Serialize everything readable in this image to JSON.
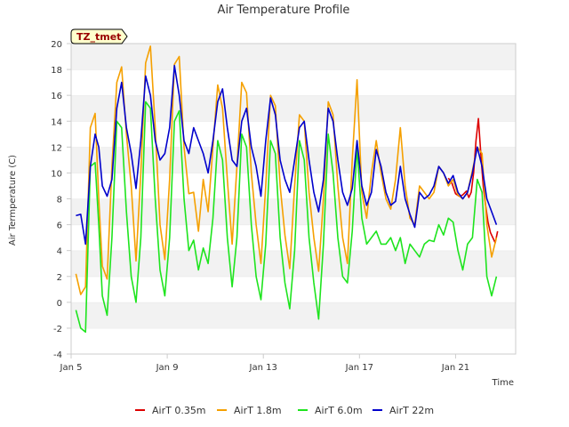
{
  "chart_data": {
    "type": "line",
    "title": "Air Temperature Profile",
    "xlabel": "Time",
    "ylabel": "Air Termperature (C)",
    "badge": "TZ_tmet",
    "xlim": [
      5,
      23.5
    ],
    "ylim": [
      -4,
      20
    ],
    "x_ticks": [
      {
        "value": 5,
        "label": "Jan 5"
      },
      {
        "value": 9,
        "label": "Jan 9"
      },
      {
        "value": 13,
        "label": "Jan 13"
      },
      {
        "value": 17,
        "label": "Jan 17"
      },
      {
        "value": 21,
        "label": "Jan 21"
      }
    ],
    "y_ticks": [
      -4,
      -2,
      0,
      2,
      4,
      6,
      8,
      10,
      12,
      14,
      16,
      18,
      20
    ],
    "grid": "horizontal bands",
    "legend_position": "bottom",
    "series": [
      {
        "name": "AirT 0.35m",
        "color": "#dd0000",
        "x": [
          20.7,
          20.85,
          21.0,
          21.15,
          21.3,
          21.45,
          21.55,
          21.65,
          21.75,
          21.85,
          21.95,
          22.05,
          22.15,
          22.25,
          22.35,
          22.45,
          22.55,
          22.65,
          22.75
        ],
        "y": [
          9.6,
          9.2,
          8.4,
          8.2,
          8.3,
          8.6,
          8.1,
          8.5,
          10.0,
          12.5,
          14.2,
          11.5,
          9.0,
          7.5,
          6.2,
          5.4,
          5.0,
          4.6,
          5.5
        ]
      },
      {
        "name": "AirT 1.8m",
        "color": "#f5a000",
        "x": [
          5.2,
          5.4,
          5.6,
          5.8,
          6.0,
          6.15,
          6.3,
          6.5,
          6.7,
          6.9,
          7.1,
          7.3,
          7.5,
          7.7,
          7.9,
          8.1,
          8.3,
          8.5,
          8.7,
          8.9,
          9.1,
          9.3,
          9.5,
          9.7,
          9.9,
          10.1,
          10.3,
          10.5,
          10.7,
          10.9,
          11.1,
          11.3,
          11.5,
          11.7,
          11.9,
          12.1,
          12.3,
          12.5,
          12.7,
          12.9,
          13.1,
          13.3,
          13.5,
          13.7,
          13.9,
          14.1,
          14.3,
          14.5,
          14.7,
          14.9,
          15.1,
          15.3,
          15.5,
          15.7,
          15.9,
          16.1,
          16.3,
          16.5,
          16.7,
          16.9,
          17.1,
          17.3,
          17.5,
          17.7,
          17.9,
          18.1,
          18.3,
          18.5,
          18.7,
          18.9,
          19.1,
          19.3,
          19.5,
          19.7,
          19.9,
          20.1,
          20.3,
          20.5,
          20.7,
          20.9,
          21.1,
          21.3,
          21.5,
          21.7,
          21.9,
          22.1,
          22.3,
          22.5,
          22.7
        ],
        "y": [
          2.2,
          0.6,
          1.2,
          13.5,
          14.6,
          8.0,
          2.8,
          1.8,
          10.5,
          17.0,
          18.2,
          13.0,
          9.0,
          3.2,
          10.0,
          18.5,
          19.8,
          13.5,
          6.0,
          3.3,
          9.5,
          18.4,
          19.0,
          12.0,
          8.4,
          8.5,
          5.5,
          9.5,
          7.0,
          12.0,
          16.8,
          15.0,
          9.5,
          4.5,
          10.5,
          17.0,
          16.2,
          10.0,
          6.0,
          3.0,
          9.0,
          16.0,
          15.2,
          9.0,
          5.2,
          2.6,
          9.0,
          14.5,
          14.0,
          8.5,
          5.0,
          2.4,
          8.0,
          15.5,
          14.5,
          9.0,
          5.0,
          3.0,
          11.0,
          17.2,
          8.5,
          6.5,
          10.0,
          12.5,
          10.0,
          8.0,
          7.2,
          9.5,
          13.5,
          9.0,
          6.5,
          6.0,
          9.0,
          8.5,
          8.0,
          8.5,
          10.5,
          10.0,
          9.0,
          9.5,
          8.3,
          8.0,
          8.5,
          10.2,
          12.0,
          11.5,
          6.0,
          3.5,
          5.0
        ]
      },
      {
        "name": "AirT 6.0m",
        "color": "#1ee41e",
        "x": [
          5.2,
          5.4,
          5.6,
          5.8,
          6.0,
          6.15,
          6.3,
          6.5,
          6.7,
          6.9,
          7.1,
          7.3,
          7.5,
          7.7,
          7.9,
          8.1,
          8.3,
          8.5,
          8.7,
          8.9,
          9.1,
          9.3,
          9.5,
          9.7,
          9.9,
          10.1,
          10.3,
          10.5,
          10.7,
          10.9,
          11.1,
          11.3,
          11.5,
          11.7,
          11.9,
          12.1,
          12.3,
          12.5,
          12.7,
          12.9,
          13.1,
          13.3,
          13.5,
          13.7,
          13.9,
          14.1,
          14.3,
          14.5,
          14.7,
          14.9,
          15.1,
          15.3,
          15.5,
          15.7,
          15.9,
          16.1,
          16.3,
          16.5,
          16.7,
          16.9,
          17.1,
          17.3,
          17.5,
          17.7,
          17.9,
          18.1,
          18.3,
          18.5,
          18.7,
          18.9,
          19.1,
          19.3,
          19.5,
          19.7,
          19.9,
          20.1,
          20.3,
          20.5,
          20.7,
          20.9,
          21.1,
          21.3,
          21.5,
          21.7,
          21.9,
          22.1,
          22.3,
          22.5,
          22.7
        ],
        "y": [
          -0.6,
          -2.0,
          -2.3,
          10.5,
          10.8,
          6.0,
          0.5,
          -1.0,
          5.0,
          14.0,
          13.5,
          7.0,
          2.0,
          0.0,
          5.0,
          15.5,
          15.0,
          8.0,
          2.5,
          0.5,
          5.0,
          14.0,
          14.8,
          8.0,
          4.0,
          4.8,
          2.5,
          4.2,
          3.0,
          6.5,
          12.5,
          11.0,
          5.0,
          1.2,
          5.0,
          13.0,
          12.0,
          6.0,
          2.0,
          0.2,
          4.5,
          12.5,
          11.5,
          5.0,
          1.5,
          -0.5,
          4.0,
          12.5,
          11.0,
          5.0,
          1.5,
          -1.3,
          4.5,
          13.0,
          10.0,
          5.0,
          2.0,
          1.5,
          5.5,
          12.0,
          6.5,
          4.5,
          5.0,
          5.5,
          4.5,
          4.5,
          5.0,
          4.0,
          5.0,
          3.0,
          4.5,
          4.0,
          3.5,
          4.5,
          4.8,
          4.7,
          6.0,
          5.2,
          6.5,
          6.2,
          4.0,
          2.5,
          4.5,
          5.0,
          9.5,
          8.5,
          2.0,
          0.5,
          2.0
        ]
      },
      {
        "name": "AirT 22m",
        "color": "#0000cc",
        "x": [
          5.2,
          5.4,
          5.6,
          5.8,
          6.0,
          6.15,
          6.3,
          6.5,
          6.7,
          6.9,
          7.1,
          7.3,
          7.5,
          7.7,
          7.9,
          8.1,
          8.3,
          8.5,
          8.7,
          8.9,
          9.1,
          9.3,
          9.5,
          9.7,
          9.9,
          10.1,
          10.3,
          10.5,
          10.7,
          10.9,
          11.1,
          11.3,
          11.5,
          11.7,
          11.9,
          12.1,
          12.3,
          12.5,
          12.7,
          12.9,
          13.1,
          13.3,
          13.5,
          13.7,
          13.9,
          14.1,
          14.3,
          14.5,
          14.7,
          14.9,
          15.1,
          15.3,
          15.5,
          15.7,
          15.9,
          16.1,
          16.3,
          16.5,
          16.7,
          16.9,
          17.1,
          17.3,
          17.5,
          17.7,
          17.9,
          18.1,
          18.3,
          18.5,
          18.7,
          18.9,
          19.1,
          19.3,
          19.5,
          19.7,
          19.9,
          20.1,
          20.3,
          20.5,
          20.7,
          20.9,
          21.1,
          21.3,
          21.5,
          21.7,
          21.9,
          22.1,
          22.3,
          22.5,
          22.7
        ],
        "y": [
          6.7,
          6.8,
          4.5,
          10.5,
          13.0,
          12.0,
          9.0,
          8.2,
          9.5,
          15.0,
          17.0,
          13.5,
          11.5,
          8.8,
          12.5,
          17.5,
          16.0,
          12.5,
          11.0,
          11.5,
          13.5,
          18.3,
          16.0,
          12.5,
          11.5,
          13.5,
          12.5,
          11.5,
          10.0,
          12.5,
          15.5,
          16.5,
          13.5,
          11.0,
          10.5,
          14.0,
          15.0,
          12.0,
          10.5,
          8.2,
          12.5,
          15.8,
          14.5,
          11.0,
          9.5,
          8.5,
          11.0,
          13.5,
          14.0,
          11.0,
          8.5,
          7.0,
          9.5,
          15.0,
          14.0,
          11.0,
          8.5,
          7.5,
          8.8,
          12.5,
          9.0,
          7.5,
          8.5,
          11.8,
          10.5,
          8.5,
          7.5,
          7.8,
          10.5,
          8.0,
          6.8,
          5.8,
          8.5,
          8.0,
          8.3,
          9.0,
          10.5,
          10.0,
          9.2,
          9.8,
          8.5,
          8.0,
          8.5,
          10.0,
          12.0,
          10.5,
          8.0,
          7.0,
          6.0
        ]
      }
    ]
  }
}
